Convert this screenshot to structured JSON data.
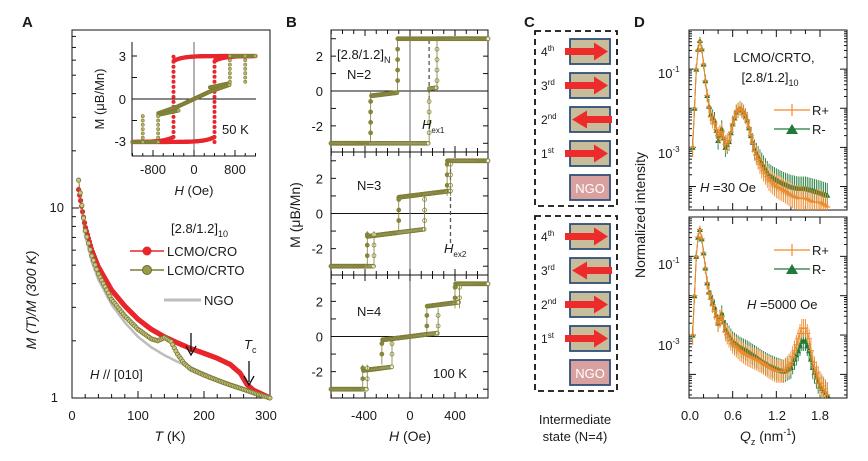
{
  "figure": {
    "panels": [
      "A",
      "B",
      "C",
      "D"
    ]
  },
  "colors": {
    "cro": "#e8262b",
    "crto": "#7d7d35",
    "ngo_line": "#bdbdbd",
    "rplus": "#f08a2a",
    "rminus": "#1f7a3a",
    "layer_fill": "#c8bd9a",
    "layer_border": "#2f4f7a",
    "arrow": "#ee2b2b",
    "ngo_fill": "#d9a0a0"
  },
  "chart_data": [
    {
      "panel": "A",
      "type": "line",
      "title": "",
      "xlabel": "T (K)",
      "ylabel": "M (T)/M (300 K)",
      "xlim": [
        0,
        300
      ],
      "ylim": [
        1,
        50
      ],
      "yscale": "log",
      "xticks": [
        "0",
        "100",
        "200",
        "300"
      ],
      "yticks": [
        "1",
        "10"
      ],
      "legend_title": "[2.8/1.2]10",
      "legend_position": "center-right",
      "annotations": [
        "H // [010]",
        "Tc"
      ],
      "arrows_at_T": [
        182,
        268
      ],
      "series": [
        {
          "name": "LCMO/CRO",
          "x": [
            10,
            20,
            30,
            40,
            60,
            80,
            100,
            120,
            140,
            160,
            180,
            200,
            220,
            240,
            255,
            265,
            275,
            290,
            300
          ],
          "y": [
            12.5,
            8.0,
            6.0,
            4.9,
            3.7,
            3.05,
            2.6,
            2.3,
            2.1,
            1.95,
            1.82,
            1.72,
            1.62,
            1.5,
            1.35,
            1.18,
            1.1,
            1.04,
            1.0
          ]
        },
        {
          "name": "LCMO/CRTO",
          "x": [
            10,
            20,
            30,
            40,
            60,
            80,
            100,
            120,
            130,
            140,
            150,
            160,
            170,
            180,
            200,
            220,
            240,
            260,
            280,
            300
          ],
          "y": [
            14.0,
            7.6,
            5.6,
            4.5,
            3.3,
            2.7,
            2.3,
            2.05,
            2.0,
            2.08,
            1.98,
            1.7,
            1.52,
            1.42,
            1.32,
            1.24,
            1.17,
            1.11,
            1.05,
            1.0
          ]
        },
        {
          "name": "NGO",
          "x": [
            10,
            20,
            30,
            40,
            60,
            80,
            100,
            120,
            140,
            160,
            180,
            200,
            220,
            240,
            260,
            280,
            300
          ],
          "y": [
            13.0,
            7.2,
            5.2,
            4.2,
            3.1,
            2.5,
            2.1,
            1.85,
            1.68,
            1.55,
            1.45,
            1.35,
            1.26,
            1.18,
            1.11,
            1.05,
            1.0
          ]
        }
      ]
    },
    {
      "panel": "A-inset",
      "type": "line",
      "xlabel": "H (Oe)",
      "ylabel": "M (μB/Mn)",
      "xlim": [
        -1200,
        1200
      ],
      "ylim": [
        -4,
        4
      ],
      "xticks": [
        "-800",
        "0",
        "800"
      ],
      "yticks": [
        "3",
        "0",
        "-3"
      ],
      "annotation": "50 K",
      "series": [
        {
          "name": "LCMO/CRO",
          "coercive_field_Oe": 400,
          "saturation": 3.0
        },
        {
          "name": "LCMO/CRTO",
          "step_fields_Oe": [
            300,
            700,
            1000
          ],
          "saturation": 3.0
        }
      ]
    },
    {
      "panel": "B",
      "type": "line",
      "xlabel": "H (Oe)",
      "ylabel": "M (μB/Mn)",
      "xlim": [
        -720,
        720
      ],
      "ylim": [
        -3.5,
        3.5
      ],
      "xticks": [
        "-400",
        "0",
        "400"
      ],
      "yticks": [
        "2",
        "0",
        "-2"
      ],
      "temperature": "100 K",
      "subplots": [
        {
          "label": "N=2",
          "header": "[2.8/1.2]N",
          "marker": "Hex1",
          "marker_H_Oe": 170,
          "steps_down_Oe": [
            -350,
            120
          ],
          "steps_up_Oe": [
            -100,
            170,
            250
          ]
        },
        {
          "label": "N=3",
          "marker": "Hex2",
          "marker_H_Oe": 360,
          "plateaus": [
            -3,
            -1,
            1,
            3
          ],
          "steps_down_Oe": [
            -380,
            -100,
            320
          ],
          "steps_up_Oe": [
            -320,
            100,
            360
          ]
        },
        {
          "label": "N=4",
          "annotation": "100 K",
          "plateaus": [
            -3,
            -1.5,
            0,
            1.5,
            3
          ],
          "steps_down_Oe": [
            -420,
            -250,
            150,
            400
          ],
          "steps_up_Oe": [
            -380,
            -150,
            250,
            450
          ]
        }
      ]
    },
    {
      "panel": "D",
      "type": "scatter",
      "xlabel": "Qz (nm^-1)",
      "ylabel": "Normalized intensity",
      "xlim": [
        0,
        1.95
      ],
      "yscale": "log",
      "ylim": [
        2e-05,
        1
      ],
      "xticks": [
        "0.0",
        "0.6",
        "1.2",
        "1.8"
      ],
      "yticks": [
        "10^-1",
        "10^-3"
      ],
      "subplots": [
        {
          "title": "LCMO/CRTO, [2.8/1.2]10",
          "field": "H =30 Oe",
          "series": [
            {
              "name": "R+",
              "x": [
                0.05,
                0.1,
                0.14,
                0.18,
                0.22,
                0.26,
                0.3,
                0.35,
                0.4,
                0.45,
                0.5,
                0.55,
                0.6,
                0.65,
                0.7,
                0.75,
                0.8,
                0.85,
                0.9,
                1.0,
                1.1,
                1.2,
                1.3,
                1.4,
                1.5,
                1.6,
                1.7,
                1.8,
                1.9
              ],
              "y": [
                0.001,
                0.1,
                0.6,
                0.3,
                0.06,
                0.015,
                0.006,
                0.004,
                0.002,
                0.0025,
                0.0012,
                0.0015,
                0.004,
                0.008,
                0.01,
                0.008,
                0.005,
                0.002,
                0.0008,
                0.0003,
                0.00015,
                0.0001,
                8e-05,
                6e-05,
                5e-05,
                5e-05,
                4e-05,
                4e-05,
                3e-05
              ]
            },
            {
              "name": "R-",
              "x": [
                0.05,
                0.1,
                0.14,
                0.18,
                0.22,
                0.26,
                0.3,
                0.35,
                0.4,
                0.45,
                0.5,
                0.55,
                0.6,
                0.65,
                0.7,
                0.75,
                0.8,
                0.85,
                0.9,
                1.0,
                1.1,
                1.2,
                1.3,
                1.4,
                1.5,
                1.6,
                1.7,
                1.8,
                1.9
              ],
              "y": [
                0.001,
                0.1,
                0.65,
                0.3,
                0.06,
                0.015,
                0.007,
                0.005,
                0.0015,
                0.003,
                0.001,
                0.0014,
                0.004,
                0.008,
                0.01,
                0.008,
                0.005,
                0.002,
                0.0009,
                0.0004,
                0.0002,
                0.00015,
                0.00012,
                0.0001,
                9e-05,
                9e-05,
                8e-05,
                7e-05,
                6e-05
              ]
            }
          ]
        },
        {
          "title": "",
          "field": "H =5000 Oe",
          "series": [
            {
              "name": "R+",
              "x": [
                0.05,
                0.1,
                0.14,
                0.18,
                0.22,
                0.26,
                0.3,
                0.35,
                0.4,
                0.45,
                0.5,
                0.6,
                0.7,
                0.8,
                0.9,
                1.0,
                1.1,
                1.2,
                1.3,
                1.4,
                1.5,
                1.55,
                1.6,
                1.65,
                1.7,
                1.8,
                1.9
              ],
              "y": [
                0.001,
                0.1,
                0.6,
                0.25,
                0.06,
                0.015,
                0.008,
                0.004,
                0.002,
                0.003,
                0.0012,
                0.0006,
                0.0004,
                0.0003,
                0.00025,
                0.0002,
                0.00015,
                0.00012,
                0.00012,
                0.0002,
                0.0008,
                0.0015,
                0.0015,
                0.0008,
                0.0002,
                6e-05,
                3e-05
              ]
            },
            {
              "name": "R-",
              "x": [
                0.05,
                0.1,
                0.14,
                0.18,
                0.22,
                0.26,
                0.3,
                0.35,
                0.4,
                0.45,
                0.5,
                0.6,
                0.7,
                0.8,
                0.9,
                1.0,
                1.1,
                1.2,
                1.3,
                1.4,
                1.5,
                1.55,
                1.6,
                1.65,
                1.7,
                1.8,
                1.9
              ],
              "y": [
                0.001,
                0.1,
                0.6,
                0.25,
                0.06,
                0.015,
                0.009,
                0.005,
                0.002,
                0.0035,
                0.0014,
                0.0007,
                0.0005,
                0.0004,
                0.0003,
                0.00022,
                0.00017,
                0.00014,
                0.00012,
                0.00015,
                0.0004,
                0.0007,
                0.0007,
                0.0004,
                0.00015,
                5e-05,
                3e-05
              ]
            }
          ]
        }
      ]
    }
  ],
  "diagram_c": {
    "caption_line1": "Intermediate",
    "caption_line2": "state (N=4)",
    "stacks": [
      {
        "layers": [
          {
            "label": "4th",
            "direction": "right"
          },
          {
            "label": "3rd",
            "direction": "right"
          },
          {
            "label": "2nd",
            "direction": "left"
          },
          {
            "label": "1st",
            "direction": "right"
          }
        ],
        "substrate": "NGO"
      },
      {
        "layers": [
          {
            "label": "4th",
            "direction": "right"
          },
          {
            "label": "3rd",
            "direction": "left"
          },
          {
            "label": "2nd",
            "direction": "right"
          },
          {
            "label": "1st",
            "direction": "right"
          }
        ],
        "substrate": "NGO"
      }
    ]
  },
  "text": {
    "panel_a": "A",
    "panel_b": "B",
    "panel_c": "C",
    "panel_d": "D",
    "a_xlabel_var": "T",
    "a_xlabel_unit": " (K)",
    "a_ylabel": "M (T)/M (300 K)",
    "a_legend_title": "[2.8/1.2]",
    "a_legend_sub": "10",
    "a_leg1": "LCMO/CRO",
    "a_leg2": "LCMO/CRTO",
    "a_leg3": "NGO",
    "a_hdir_var": "H",
    "a_hdir_rest": " // [010]",
    "a_tc_var": "T",
    "a_tc_sub": "c",
    "inset_ylabel": "M (μB/Mn)",
    "inset_temp": "50 K",
    "inset_xlabel_var": "H",
    "inset_xlabel_unit": " (Oe)",
    "b_header": "[2.8/1.2]",
    "b_header_sub": "N",
    "b_n2": "N=2",
    "b_n3": "N=3",
    "b_n4": "N=4",
    "b_hex1_var": "H",
    "b_hex1_sub": "ex1",
    "b_hex2_var": "H",
    "b_hex2_sub": "ex2",
    "b_temp": "100 K",
    "b_ylabel": "M (μB/Mn)",
    "b_xlabel_var": "H",
    "b_xlabel_unit": " (Oe)",
    "d_title1": "LCMO/CRTO,",
    "d_title2": "[2.8/1.2]",
    "d_title2_sub": "10",
    "d_leg_rp": "R+",
    "d_leg_rm": "R-",
    "d_field1_var": "H",
    "d_field1_rest": " =30 Oe",
    "d_field2_var": "H",
    "d_field2_rest": " =5000 Oe",
    "d_ylabel": "Normalized intensity",
    "d_xlabel_var": "Q",
    "d_xlabel_sub": "z",
    "d_xlabel_unit": " (nm",
    "d_xlabel_sup": "-1",
    "d_xlabel_close": ")"
  }
}
